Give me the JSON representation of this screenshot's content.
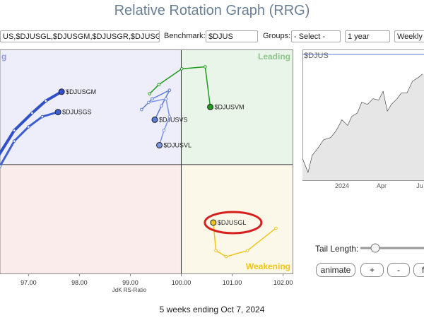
{
  "header": {
    "title": "Relative Rotation Graph (RRG)"
  },
  "controls": {
    "symbols": "US,$DJUSGL,$DJUSGM,$DJUSGR,$DJUSGS",
    "benchmark_label": "Benchmark:",
    "benchmark": "$DJUS",
    "groups_label": "Groups:",
    "groups": "- Select -",
    "period": "1 year",
    "frequency": "Weekly"
  },
  "chart_data": {
    "type": "scatter",
    "quadrants": {
      "lagging": "g",
      "leading": "Leading",
      "weakening": "Weakening"
    },
    "x_label": "JdK RS-Ratio",
    "xlim": [
      96.44,
      102.2
    ],
    "ylim": [
      97.86,
      102.26
    ],
    "center": [
      100,
      100
    ],
    "xticks": [
      {
        "value": 97,
        "label": "97.00"
      },
      {
        "value": 98,
        "label": "98.00"
      },
      {
        "value": 99,
        "label": "99.00"
      },
      {
        "value": 100,
        "label": "100.00"
      },
      {
        "value": 101,
        "label": "101.00"
      },
      {
        "value": 102,
        "label": "102.00"
      }
    ],
    "series": [
      {
        "name": "$DJUSGM",
        "color": "#3050c8",
        "width": 4,
        "x": [
          96.37,
          96.72,
          97.07,
          97.34,
          97.65
        ],
        "values": [
          100.11,
          100.67,
          101.01,
          101.25,
          101.43
        ]
      },
      {
        "name": "$DJUSGS",
        "color": "#3f5fd0",
        "width": 3,
        "x": [
          96.44,
          96.72,
          97.0,
          97.27,
          97.58
        ],
        "values": [
          99.97,
          100.46,
          100.74,
          100.94,
          101.03
        ]
      },
      {
        "name": "$DJUSVS",
        "color": "#5b7bd5",
        "width": 1.5,
        "x": [
          99.22,
          99.43,
          99.77,
          99.61,
          99.48
        ],
        "values": [
          101.08,
          101.29,
          101.46,
          101.15,
          100.88
        ]
      },
      {
        "name": "$DJUSVL",
        "color": "#7a95de",
        "width": 1.5,
        "x": [
          99.36,
          99.7,
          99.77,
          99.66,
          99.57
        ],
        "values": [
          101.22,
          101.29,
          100.94,
          100.67,
          100.38
        ]
      },
      {
        "name": "$DJUSVM",
        "color": "#1f9a1f",
        "width": 1.5,
        "x": [
          99.38,
          99.56,
          100.01,
          100.47,
          100.57
        ],
        "values": [
          101.39,
          101.57,
          101.88,
          101.92,
          101.13
        ]
      },
      {
        "name": "$DJUSGL",
        "color": "#f0c419",
        "width": 1.5,
        "x": [
          101.86,
          101.3,
          100.88,
          100.68,
          100.63
        ],
        "values": [
          98.75,
          98.31,
          98.19,
          98.31,
          98.86
        ]
      }
    ]
  },
  "mini_chart": {
    "label": "$DJUS",
    "x_labels": [
      "2024",
      "Apr",
      "Ju"
    ]
  },
  "tail": {
    "label": "Tail Length:"
  },
  "buttons": [
    "animate",
    "+",
    "-",
    "fi"
  ],
  "footer": "5 weeks ending Oct 7, 2024"
}
